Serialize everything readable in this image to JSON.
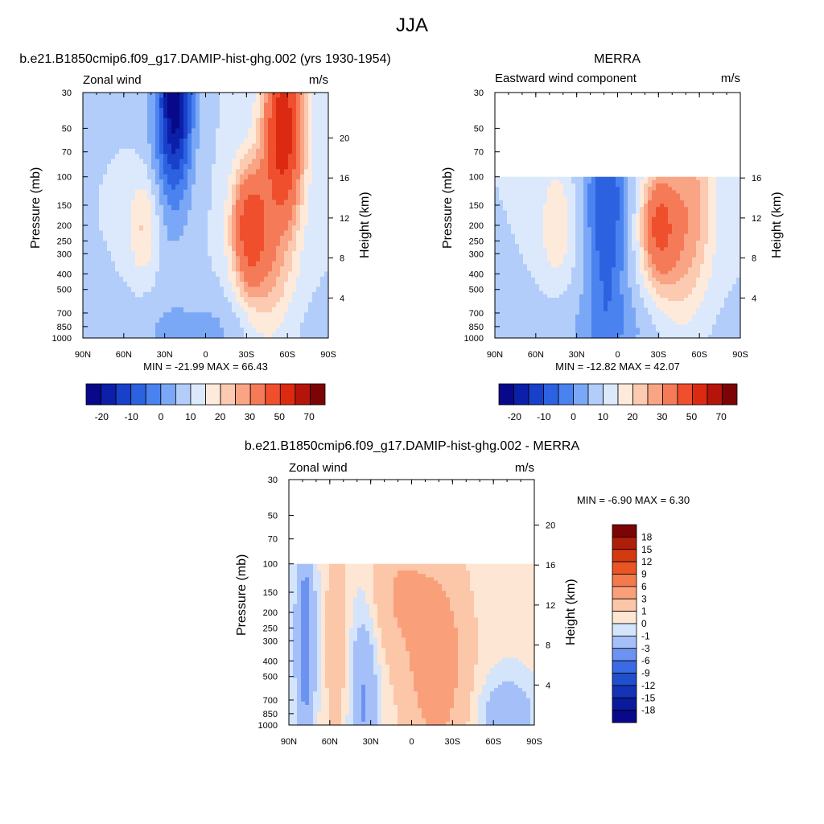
{
  "figure": {
    "title": "JJA"
  },
  "chart_data": [
    {
      "type": "heatmap",
      "title": "b.e21.B1850cmip6.f09_g17.DAMIP-hist-ghg.002 (yrs 1930-1954)",
      "variable_label": "Zonal wind",
      "units": "m/s",
      "ylabel": "Pressure (mb)",
      "ylabel_right": "Height (km)",
      "x_ticks": [
        "90N",
        "60N",
        "30N",
        "0",
        "30S",
        "60S",
        "90S"
      ],
      "y_ticks": [
        30,
        50,
        70,
        100,
        150,
        200,
        250,
        300,
        400,
        500,
        700,
        850,
        1000
      ],
      "height_ticks": [
        4,
        8,
        12,
        16,
        20
      ],
      "y_range": [
        1000,
        30
      ],
      "data_top_pressure": 30,
      "min": -21.99,
      "max": 66.43,
      "stats_text": "MIN = -21.99  MAX =  66.43",
      "colorbar_orientation": "horizontal",
      "colorbar_labels": [
        "-20",
        "-10",
        "0",
        "10",
        "20",
        "30",
        "50",
        "70"
      ],
      "features": [
        {
          "type": "jet",
          "lat": -57,
          "pressure": 50,
          "value": 66.43
        },
        {
          "type": "jet",
          "lat": -32,
          "pressure": 200,
          "value": 45
        },
        {
          "type": "jet",
          "lat": 45,
          "pressure": 200,
          "value": 22
        },
        {
          "type": "easterly",
          "lat": 20,
          "pressure": 30,
          "value": -21.99
        }
      ]
    },
    {
      "type": "heatmap",
      "title": "MERRA",
      "variable_label": "Eastward wind component",
      "units": "m/s",
      "ylabel": "Pressure (mb)",
      "ylabel_right": "Height (km)",
      "x_ticks": [
        "90N",
        "60N",
        "30N",
        "0",
        "30S",
        "60S",
        "90S"
      ],
      "y_ticks": [
        30,
        50,
        70,
        100,
        150,
        200,
        250,
        300,
        400,
        500,
        700,
        850,
        1000
      ],
      "height_ticks": [
        4,
        8,
        12,
        16
      ],
      "y_range": [
        1000,
        30
      ],
      "data_top_pressure": 100,
      "min": -12.82,
      "max": 42.07,
      "stats_text": "MIN = -12.82  MAX =  42.07",
      "colorbar_orientation": "horizontal",
      "colorbar_labels": [
        "-20",
        "-10",
        "0",
        "10",
        "20",
        "30",
        "50",
        "70"
      ],
      "features": [
        {
          "type": "jet",
          "lat": -30,
          "pressure": 200,
          "value": 42.07
        },
        {
          "type": "jet",
          "lat": 45,
          "pressure": 200,
          "value": 18
        },
        {
          "type": "easterly",
          "lat": 10,
          "pressure": 150,
          "value": -12.82
        }
      ]
    },
    {
      "type": "heatmap",
      "title": "b.e21.B1850cmip6.f09_g17.DAMIP-hist-ghg.002 - MERRA",
      "variable_label": "Zonal wind",
      "units": "m/s",
      "ylabel": "Pressure (mb)",
      "ylabel_right": "Height (km)",
      "x_ticks": [
        "90N",
        "60N",
        "30N",
        "0",
        "30S",
        "60S",
        "90S"
      ],
      "y_ticks": [
        30,
        50,
        70,
        100,
        150,
        200,
        250,
        300,
        400,
        500,
        700,
        850,
        1000
      ],
      "height_ticks": [
        4,
        8,
        12,
        16,
        20
      ],
      "y_range": [
        1000,
        30
      ],
      "data_top_pressure": 100,
      "min": -6.9,
      "max": 6.3,
      "stats_text": "MIN =  -6.90  MAX =   6.30",
      "colorbar_orientation": "vertical",
      "colorbar_labels": [
        "18",
        "15",
        "12",
        "9",
        "6",
        "3",
        "1",
        "0",
        "-1",
        "-3",
        "-6",
        "-9",
        "-12",
        "-15",
        "-18"
      ]
    }
  ],
  "colors": {
    "main_scale": [
      "#08088a",
      "#0c1fa8",
      "#1840c8",
      "#2c62e0",
      "#4a82f0",
      "#7aa8f6",
      "#b2cdfa",
      "#dce9fc",
      "#feeadb",
      "#fccab0",
      "#f9a484",
      "#f57b58",
      "#ef4f2c",
      "#dc2a12",
      "#b4140a",
      "#7c0404"
    ],
    "diff_scale": [
      "#08088a",
      "#0a1a9c",
      "#1433b5",
      "#1f4fcc",
      "#3a6ae4",
      "#6d93f2",
      "#a5c0f8",
      "#d4e4fb",
      "#fde6d3",
      "#fcc6a8",
      "#f9a07a",
      "#f27a4e",
      "#ea5524",
      "#d43a10",
      "#ae1e08",
      "#7c0404"
    ]
  }
}
